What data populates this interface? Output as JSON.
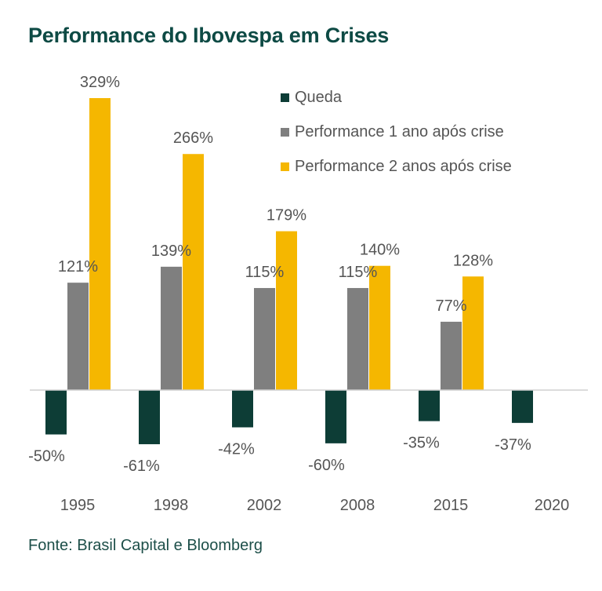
{
  "title": "Performance do Ibovespa em Crises",
  "source": "Fonte: Brasil Capital e Bloomberg",
  "chart_data": {
    "type": "bar",
    "title": "Performance do Ibovespa em Crises",
    "categories": [
      "1995",
      "1998",
      "2002",
      "2008",
      "2015",
      "2020"
    ],
    "series": [
      {
        "name": "Queda",
        "color": "#0d3d36",
        "values": [
          -50,
          -61,
          -42,
          -60,
          -35,
          -37
        ],
        "labels": [
          "-50%",
          "-61%",
          "-42%",
          "-60%",
          "-35%",
          "-37%"
        ]
      },
      {
        "name": "Performance 1 ano após crise",
        "color": "#7f7f7f",
        "values": [
          121,
          139,
          115,
          115,
          77,
          null
        ],
        "labels": [
          "121%",
          "139%",
          "115%",
          "115%",
          "77%",
          ""
        ]
      },
      {
        "name": "Performance 2 anos após crise",
        "color": "#f5b700",
        "values": [
          329,
          266,
          179,
          140,
          128,
          null
        ],
        "labels": [
          "329%",
          "266%",
          "179%",
          "140%",
          "128%",
          ""
        ]
      }
    ],
    "ylim": [
      -75,
      340
    ],
    "grid": false,
    "legend_position": "top-right"
  }
}
